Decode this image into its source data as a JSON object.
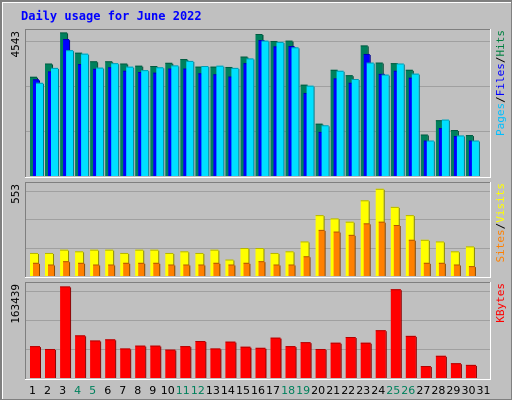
{
  "chart_data": {
    "type": "bar",
    "title": "Daily usage for June 2022",
    "categories": [
      "1",
      "2",
      "3",
      "4",
      "5",
      "6",
      "7",
      "8",
      "9",
      "10",
      "11",
      "12",
      "13",
      "14",
      "15",
      "16",
      "17",
      "18",
      "19",
      "20",
      "21",
      "22",
      "23",
      "24",
      "25",
      "26",
      "27",
      "28",
      "29",
      "30",
      "31"
    ],
    "weekend_days": [
      "4",
      "5",
      "11",
      "12",
      "18",
      "19",
      "25",
      "26"
    ],
    "panels": [
      {
        "id": "hits",
        "max_label": "4543",
        "ylim": [
          0,
          4543
        ],
        "legend": [
          "Pages",
          "/",
          "Files",
          "/",
          "Hits"
        ],
        "legend_colors": [
          "#00bfff",
          "#000000",
          "#0000ff",
          "#000000",
          "#008040"
        ],
        "series": [
          {
            "name": "Hits",
            "color": "#00805c",
            "values": [
              3130,
              3550,
              4530,
              3890,
              3620,
              3620,
              3550,
              3480,
              3470,
              3570,
              3690,
              3450,
              3450,
              3440,
              3770,
              4480,
              4260,
              4270,
              2880,
              1650,
              3350,
              3180,
              4120,
              3580,
              3560,
              3350,
              1310,
              1760,
              1450,
              1290,
              0
            ]
          },
          {
            "name": "Files",
            "color": "#0000ff",
            "values": [
              3050,
              3300,
              4320,
              3530,
              3380,
              3430,
              3320,
              3280,
              3260,
              3390,
              3390,
              3240,
              3210,
              3140,
              3560,
              4290,
              4090,
              4100,
              2620,
              1390,
              3080,
              2940,
              3850,
              3220,
              3320,
              3100,
              1120,
              1510,
              1260,
              1120,
              0
            ]
          },
          {
            "name": "Pages",
            "color": "#00e0ff",
            "values": [
              2940,
              3410,
              3970,
              3860,
              3420,
              3560,
              3450,
              3340,
              3430,
              3490,
              3630,
              3470,
              3480,
              3410,
              3710,
              4270,
              4230,
              4060,
              2850,
              1600,
              3320,
              3060,
              3580,
              3200,
              3550,
              3230,
              1120,
              1780,
              1280,
              1120,
              0
            ]
          }
        ]
      },
      {
        "id": "visits",
        "max_label": "553",
        "ylim": [
          0,
          553
        ],
        "legend": [
          "Sites",
          "/",
          "Visits"
        ],
        "legend_colors": [
          "#ff8000",
          "#000000",
          "#ffff00"
        ],
        "series": [
          {
            "name": "Visits",
            "color": "#ffff00",
            "values": [
              140,
              140,
              160,
              150,
              160,
              160,
              140,
              160,
              160,
              140,
              150,
              140,
              160,
              100,
              170,
              170,
              140,
              150,
              210,
              370,
              350,
              330,
              460,
              530,
              420,
              370,
              220,
              210,
              150,
              180,
              0
            ]
          },
          {
            "name": "Sites",
            "color": "#ff8000",
            "values": [
              80,
              70,
              90,
              80,
              70,
              70,
              80,
              80,
              80,
              70,
              70,
              70,
              80,
              70,
              80,
              90,
              70,
              70,
              120,
              280,
              270,
              250,
              320,
              330,
              310,
              220,
              80,
              80,
              70,
              60,
              0
            ]
          }
        ]
      },
      {
        "id": "kbytes",
        "max_label": "163439",
        "ylim": [
          0,
          163439
        ],
        "legend": [
          "KBytes"
        ],
        "legend_colors": [
          "#ff0000"
        ],
        "series": [
          {
            "name": "KBytes",
            "color": "#ff0000",
            "values": [
              56000,
              51000,
              161000,
              75000,
              66000,
              68000,
              52000,
              57000,
              57000,
              50000,
              56000,
              65000,
              52000,
              64000,
              55000,
              53000,
              71000,
              56000,
              63000,
              51000,
              62000,
              72000,
              62000,
              84000,
              156000,
              74000,
              21000,
              39000,
              26000,
              23000,
              0
            ]
          }
        ]
      }
    ]
  }
}
